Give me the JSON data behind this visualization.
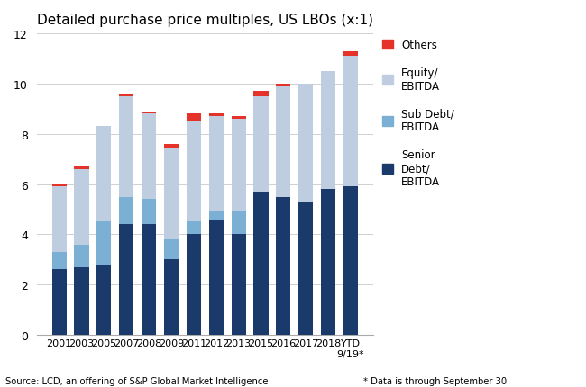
{
  "title": "Detailed purchase price multiples, US LBOs (x:1)",
  "categories": [
    "2001",
    "2003",
    "2005",
    "2007",
    "2008",
    "2009",
    "2011",
    "2012",
    "2013",
    "2015",
    "2016",
    "2017",
    "2018",
    "YTD\n9/19*"
  ],
  "senior_debt": [
    2.6,
    2.7,
    2.8,
    4.4,
    4.4,
    3.0,
    4.0,
    4.6,
    4.0,
    5.7,
    5.5,
    5.3,
    5.8,
    5.9
  ],
  "sub_debt": [
    0.7,
    0.9,
    1.7,
    1.1,
    1.0,
    0.8,
    0.5,
    0.3,
    0.9,
    0.0,
    0.0,
    0.0,
    0.0,
    0.0
  ],
  "equity": [
    2.6,
    3.0,
    3.8,
    4.0,
    3.4,
    3.6,
    4.0,
    3.8,
    3.7,
    3.8,
    4.4,
    4.7,
    4.7,
    5.2
  ],
  "others": [
    0.1,
    0.1,
    0.0,
    0.1,
    0.1,
    0.2,
    0.3,
    0.1,
    0.1,
    0.2,
    0.1,
    0.0,
    0.0,
    0.2
  ],
  "color_senior": "#1a3a6b",
  "color_sub": "#7bafd4",
  "color_equity": "#bfcde0",
  "color_others": "#e63329",
  "ylim": [
    0,
    12
  ],
  "yticks": [
    0,
    2,
    4,
    6,
    8,
    10,
    12
  ],
  "footnote_left": "Source: LCD, an offering of S&P Global Market Intelligence",
  "footnote_right": "* Data is through September 30",
  "legend_labels": [
    "Others",
    "Equity/\nEBITDA",
    "Sub Debt/\nEBITDA",
    "Senior\nDebt/\nEBITDA"
  ],
  "bar_width": 0.65
}
